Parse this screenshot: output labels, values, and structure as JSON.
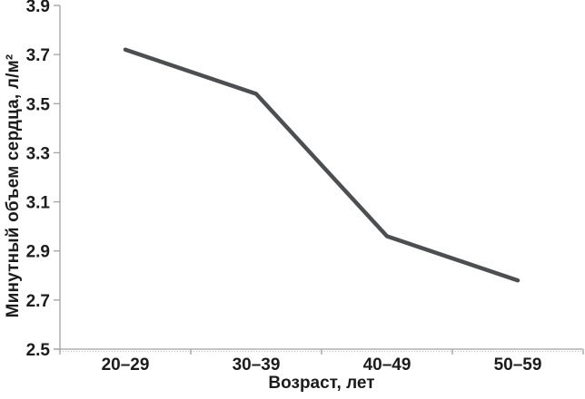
{
  "chart_data": {
    "type": "line",
    "title": "",
    "categories": [
      "20–29",
      "30–39",
      "40–49",
      "50–59"
    ],
    "values": [
      3.72,
      3.54,
      2.96,
      2.78
    ],
    "series_name": "Минутный объем сердца",
    "xlabel": "Возраст, лет",
    "ylabel": "Минутный объем сердца, л/м²",
    "ylim": [
      2.5,
      3.9
    ],
    "ytick_step": 0.2,
    "yticks": [
      "2.5",
      "2.7",
      "2.9",
      "3.1",
      "3.3",
      "3.5",
      "3.7",
      "3.9"
    ],
    "grid": false,
    "legend": "none",
    "line_color": "#4d4e50",
    "axis_color": "#a2a2a2",
    "axis_dot_color": "#bdbdbd",
    "text_color": "#1c1c1c"
  }
}
